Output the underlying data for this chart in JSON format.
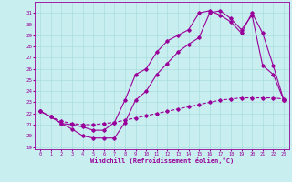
{
  "xlabel": "Windchill (Refroidissement éolien,°C)",
  "bg_color": "#c8eef0",
  "grid_color": "#aadddd",
  "line_color": "#990099",
  "xlim": [
    -0.5,
    23.5
  ],
  "ylim": [
    18.8,
    32.0
  ],
  "yticks": [
    19,
    20,
    21,
    22,
    23,
    24,
    25,
    26,
    27,
    28,
    29,
    30,
    31
  ],
  "xticks": [
    0,
    1,
    2,
    3,
    4,
    5,
    6,
    7,
    8,
    9,
    10,
    11,
    12,
    13,
    14,
    15,
    16,
    17,
    18,
    19,
    20,
    21,
    22,
    23
  ],
  "series1_x": [
    0,
    1,
    2,
    3,
    4,
    5,
    6,
    7,
    8,
    9,
    10,
    11,
    12,
    13,
    14,
    15,
    16,
    17,
    18,
    19,
    20,
    21,
    22,
    23
  ],
  "series1_y": [
    22.2,
    21.7,
    21.1,
    20.6,
    20.0,
    19.8,
    19.8,
    19.8,
    21.2,
    23.2,
    24.0,
    25.5,
    26.5,
    27.5,
    28.2,
    28.8,
    31.0,
    31.2,
    30.5,
    29.5,
    30.8,
    26.3,
    25.5,
    23.2
  ],
  "series2_x": [
    0,
    1,
    2,
    3,
    4,
    5,
    6,
    7,
    8,
    9,
    10,
    11,
    12,
    13,
    14,
    15,
    16,
    17,
    18,
    19,
    20,
    21,
    22,
    23
  ],
  "series2_y": [
    22.2,
    21.7,
    21.3,
    21.1,
    21.0,
    21.0,
    21.1,
    21.2,
    21.4,
    21.6,
    21.8,
    22.0,
    22.2,
    22.4,
    22.6,
    22.8,
    23.0,
    23.2,
    23.3,
    23.4,
    23.4,
    23.4,
    23.4,
    23.3
  ],
  "series3_x": [
    0,
    1,
    2,
    3,
    4,
    5,
    6,
    7,
    8,
    9,
    10,
    11,
    12,
    13,
    14,
    15,
    16,
    17,
    18,
    19,
    20,
    21,
    22,
    23
  ],
  "series3_y": [
    22.2,
    21.7,
    21.1,
    21.0,
    20.8,
    20.5,
    20.5,
    21.2,
    23.2,
    25.5,
    26.0,
    27.5,
    28.5,
    29.0,
    29.5,
    31.0,
    31.2,
    30.8,
    30.2,
    29.2,
    31.0,
    29.2,
    26.3,
    23.2
  ]
}
